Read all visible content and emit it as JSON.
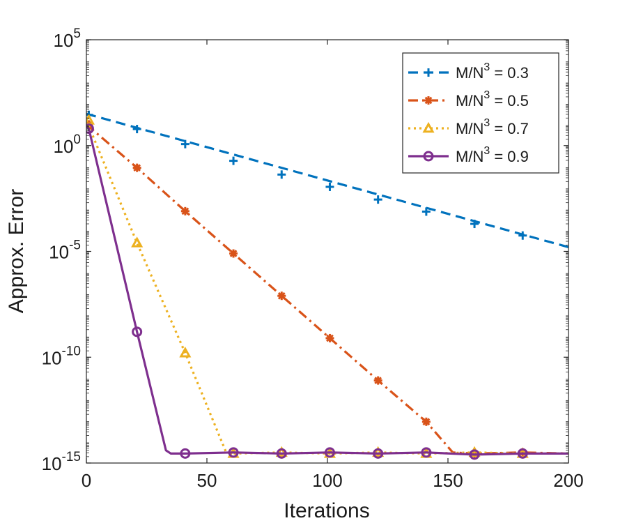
{
  "chart_data": {
    "type": "line",
    "title": "",
    "xlabel": "Iterations",
    "ylabel": "Approx. Error",
    "xlim": [
      0,
      200
    ],
    "ylim_log10": [
      -15,
      5
    ],
    "yscale": "log",
    "x_ticks": [
      0,
      50,
      100,
      150,
      200
    ],
    "y_tick_exponents": [
      -15,
      -10,
      -5,
      0,
      5
    ],
    "y_tick_base": "10",
    "legend_position": "top-right",
    "series": [
      {
        "name": "M/N³ = 0.3",
        "label_text": "M/N",
        "label_sup": "3",
        "label_value": " = 0.3",
        "color": "#0072BD",
        "linestyle": "dashed",
        "marker": "plus",
        "x": [
          0,
          200
        ],
        "log10_y": [
          1.5,
          -4.8
        ],
        "marker_x": [
          1,
          21,
          41,
          61,
          81,
          101,
          121,
          141,
          161,
          181
        ],
        "marker_log10_y": [
          1.45,
          0.78,
          0.07,
          -0.72,
          -1.37,
          -1.95,
          -2.55,
          -3.12,
          -3.7,
          -4.25
        ]
      },
      {
        "name": "M/N³ = 0.5",
        "label_text": "M/N",
        "label_sup": "3",
        "label_value": " = 0.5",
        "color": "#D95319",
        "linestyle": "dashdot",
        "marker": "asterisk",
        "x": [
          0,
          21,
          41,
          61,
          81,
          101,
          121,
          141,
          152,
          161,
          181,
          200
        ],
        "log10_y": [
          1.0,
          -1.05,
          -3.1,
          -5.1,
          -7.1,
          -9.1,
          -11.1,
          -13.05,
          -14.5,
          -14.55,
          -14.5,
          -14.55
        ],
        "marker_x": [
          1,
          21,
          41,
          61,
          81,
          101,
          121,
          141,
          161,
          181
        ],
        "marker_log10_y": [
          1.0,
          -1.05,
          -3.1,
          -5.1,
          -7.1,
          -9.1,
          -11.1,
          -13.05,
          -14.55,
          -14.5
        ]
      },
      {
        "name": "M/N³ = 0.7",
        "label_text": "M/N",
        "label_sup": "3",
        "label_value": " = 0.7",
        "color": "#EDB120",
        "linestyle": "dotted",
        "marker": "triangle",
        "x": [
          0,
          21,
          41,
          58,
          61,
          81,
          101,
          121,
          141,
          161,
          181,
          200
        ],
        "log10_y": [
          1.2,
          -4.6,
          -9.8,
          -14.5,
          -14.55,
          -14.5,
          -14.55,
          -14.5,
          -14.55,
          -14.5,
          -14.55,
          -14.55
        ],
        "marker_x": [
          1,
          21,
          41,
          61,
          81,
          101,
          121,
          141,
          161,
          181
        ],
        "marker_log10_y": [
          1.2,
          -4.6,
          -9.8,
          -14.55,
          -14.5,
          -14.55,
          -14.5,
          -14.55,
          -14.5,
          -14.55
        ]
      },
      {
        "name": "M/N³ = 0.9",
        "label_text": "M/N",
        "label_sup": "3",
        "label_value": " = 0.9",
        "color": "#7E2F8E",
        "linestyle": "solid",
        "marker": "circle",
        "x": [
          0,
          1,
          21,
          33,
          35,
          41,
          61,
          81,
          101,
          121,
          141,
          161,
          181,
          200
        ],
        "log10_y": [
          0.9,
          0.8,
          -8.8,
          -14.4,
          -14.55,
          -14.55,
          -14.5,
          -14.55,
          -14.5,
          -14.55,
          -14.5,
          -14.6,
          -14.55,
          -14.55
        ],
        "marker_x": [
          1,
          21,
          41,
          61,
          81,
          101,
          121,
          141,
          161,
          181
        ],
        "marker_log10_y": [
          0.8,
          -8.8,
          -14.55,
          -14.5,
          -14.55,
          -14.5,
          -14.55,
          -14.5,
          -14.6,
          -14.55
        ]
      }
    ]
  }
}
